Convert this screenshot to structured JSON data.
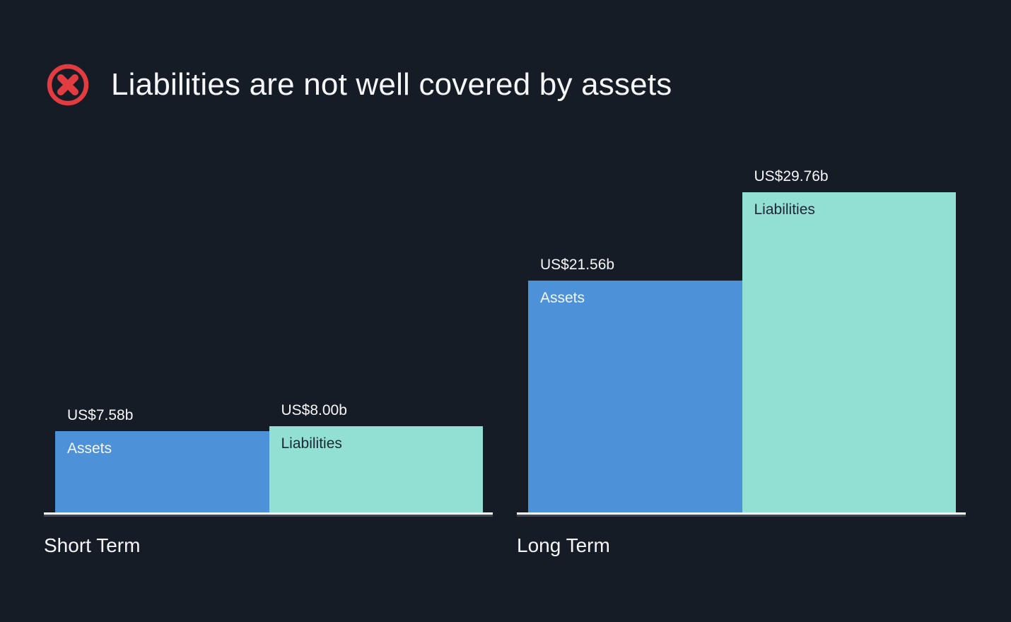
{
  "title": "Liabilities are not well covered by assets",
  "status_icon": "error-cross-circle",
  "colors": {
    "background": "#161C26",
    "assets": "#4D92D8",
    "liabilities": "#92E0D3",
    "icon_red": "#E23C41",
    "text_light": "#F5F6F8",
    "text_dark": "#1D2634",
    "baseline_white": "#FFFFFF",
    "baseline_shadow": "#3E4550"
  },
  "chart_data": {
    "type": "bar",
    "title": "Liabilities are not well covered by assets",
    "unit": "US$ billions",
    "axis_max": 29.76,
    "grid": false,
    "legend": false,
    "groups": [
      {
        "label": "Short Term",
        "bars": [
          {
            "name": "Assets",
            "value": 7.58,
            "value_label": "US$7.58b"
          },
          {
            "name": "Liabilities",
            "value": 8.0,
            "value_label": "US$8.00b"
          }
        ]
      },
      {
        "label": "Long Term",
        "bars": [
          {
            "name": "Assets",
            "value": 21.56,
            "value_label": "US$21.56b"
          },
          {
            "name": "Liabilities",
            "value": 29.76,
            "value_label": "US$29.76b"
          }
        ]
      }
    ]
  }
}
